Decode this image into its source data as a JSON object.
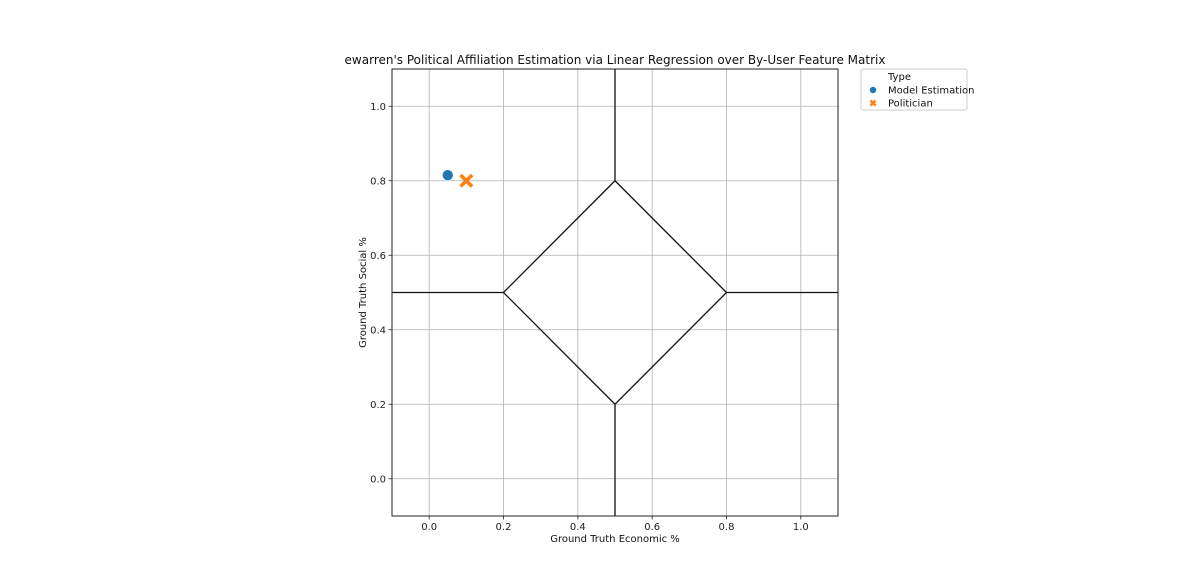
{
  "chart_data": {
    "type": "scatter",
    "title": "ewarren's Political Affiliation Estimation via Linear Regression over By-User Feature Matrix",
    "xlabel": "Ground Truth Economic %",
    "ylabel": "Ground Truth Social %",
    "xlim": [
      -0.1,
      1.1
    ],
    "ylim": [
      -0.1,
      1.1
    ],
    "xticks": [
      "0.0",
      "0.2",
      "0.4",
      "0.6",
      "0.8",
      "1.0"
    ],
    "yticks": [
      "0.0",
      "0.2",
      "0.4",
      "0.6",
      "0.8",
      "1.0"
    ],
    "grid": true,
    "legend": {
      "title": "Type",
      "placement": "outside-top-right",
      "entries": [
        {
          "label": "Model Estimation",
          "color": "#1f77b4",
          "marker": "circle"
        },
        {
          "label": "Politician",
          "color": "#ff7f0e",
          "marker": "x"
        }
      ]
    },
    "series": [
      {
        "name": "Model Estimation",
        "color": "#1f77b4",
        "marker": "circle",
        "points": [
          {
            "x": 0.05,
            "y": 0.815
          }
        ]
      },
      {
        "name": "Politician",
        "color": "#ff7f0e",
        "marker": "x",
        "points": [
          {
            "x": 0.1,
            "y": 0.8
          }
        ]
      }
    ],
    "reference_lines": [
      {
        "x": [
          0.5,
          0.5
        ],
        "y": [
          0.8,
          1.1
        ]
      },
      {
        "x": [
          0.5,
          0.5
        ],
        "y": [
          -0.1,
          0.2
        ]
      },
      {
        "x": [
          -0.1,
          0.2
        ],
        "y": [
          0.5,
          0.5
        ]
      },
      {
        "x": [
          0.8,
          1.1
        ],
        "y": [
          0.5,
          0.5
        ]
      },
      {
        "x": [
          0.5,
          0.8,
          0.5,
          0.2,
          0.5
        ],
        "y": [
          0.8,
          0.5,
          0.2,
          0.5,
          0.8
        ]
      }
    ]
  }
}
